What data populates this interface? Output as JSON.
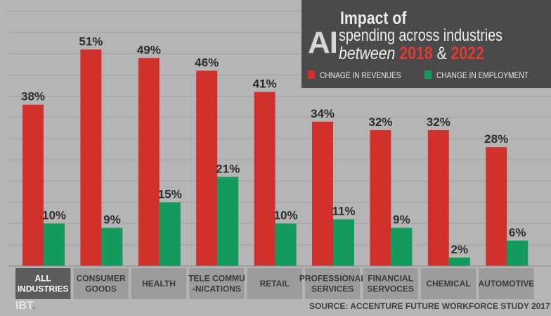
{
  "title": {
    "ai": "AI",
    "impact": "Impact of",
    "line2": "spending across industries",
    "between": "between",
    "year_start": "2018",
    "amp": "&",
    "year_end": "2022"
  },
  "legend": {
    "revenue": "CHNAGE IN REVENUES",
    "employment": "CHANGE IN EMPLOYMENT"
  },
  "colors": {
    "revenue": "#d0312d",
    "employment": "#149a5d",
    "background": "#b5b5b5",
    "title_bg": "#4a4a4a",
    "category_bg": "#9c9c9c",
    "category_selected_bg": "#5c5c5c"
  },
  "logo": "IBT",
  "source": "SOURCE: ACCENTURE FUTURE WORKFORCE STUDY 2017",
  "chart_data": {
    "type": "bar",
    "categories": [
      [
        "ALL",
        "INDUSTRIES"
      ],
      [
        "CONSUMER",
        "GOODS"
      ],
      [
        "HEALTH"
      ],
      [
        "TELE COMMU",
        "-NICATIONS"
      ],
      [
        "RETAIL"
      ],
      [
        "PROFESSIONAL",
        "SERVICES"
      ],
      [
        "FINANCIAL",
        "SERVOCES"
      ],
      [
        "CHEMICAL"
      ],
      [
        "AUTOMOTIVE"
      ]
    ],
    "series": [
      {
        "name": "CHNAGE IN REVENUES",
        "values": [
          38,
          51,
          49,
          46,
          41,
          34,
          32,
          32,
          28
        ]
      },
      {
        "name": "CHANGE IN EMPLOYMENT",
        "values": [
          10,
          9,
          15,
          21,
          10,
          11,
          9,
          2,
          6
        ]
      }
    ],
    "value_suffix": "%",
    "ylim": [
      0,
      60
    ],
    "grid": true,
    "selected_category": 0
  }
}
